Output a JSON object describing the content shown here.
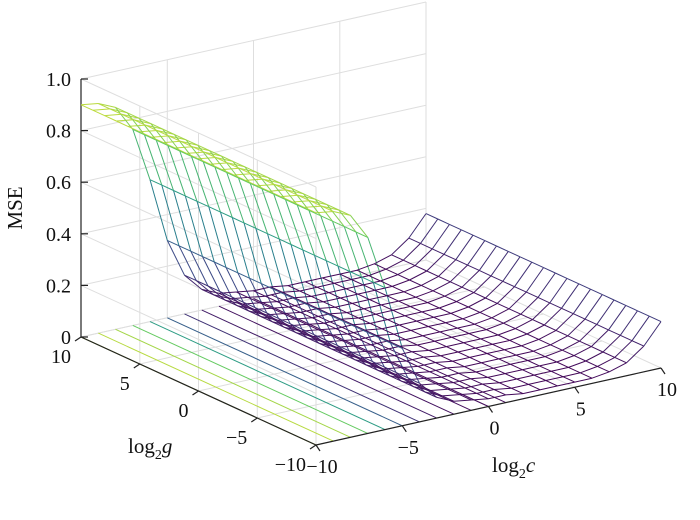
{
  "chart_data": {
    "type": "surface3d",
    "title": "",
    "zlabel": "MSE",
    "xlabel": {
      "base": "log",
      "sub": "2",
      "var": "c"
    },
    "ylabel": {
      "base": "log",
      "sub": "2",
      "var": "g"
    },
    "xlim": [
      -10,
      10
    ],
    "ylim": [
      -10,
      10
    ],
    "zlim": [
      0,
      1
    ],
    "x_ticks": [
      -10,
      -5,
      0,
      5,
      10
    ],
    "y_ticks": [
      -10,
      -5,
      0,
      5,
      10
    ],
    "z_ticks": [
      "0",
      "0.2",
      "0.4",
      "0.6",
      "0.8",
      "1.0"
    ],
    "x": [
      -10,
      -9,
      -8,
      -7,
      -6,
      -5,
      -4,
      -3,
      -2,
      -1,
      0,
      1,
      2,
      3,
      4,
      5,
      6,
      7,
      8,
      9,
      10
    ],
    "y": [
      -10,
      -9,
      -8,
      -7,
      -6,
      -5,
      -4,
      -3,
      -2,
      -1,
      0,
      1,
      2,
      3,
      4,
      5,
      6,
      7,
      8,
      9,
      10
    ],
    "colormap": [
      "#440154",
      "#3b528b",
      "#21918c",
      "#5ec962",
      "#fde725"
    ],
    "grid": true,
    "contour_on_floor": true,
    "z": [
      [
        0.9,
        0.89,
        0.86,
        0.76,
        0.55,
        0.3,
        0.15,
        0.08,
        0.05,
        0.04,
        0.03,
        0.03,
        0.02,
        0.02,
        0.02,
        0.02,
        0.02,
        0.03,
        0.05,
        0.1,
        0.18
      ],
      [
        0.9,
        0.89,
        0.86,
        0.76,
        0.55,
        0.3,
        0.15,
        0.08,
        0.05,
        0.04,
        0.03,
        0.03,
        0.02,
        0.02,
        0.02,
        0.02,
        0.02,
        0.03,
        0.05,
        0.1,
        0.18
      ],
      [
        0.9,
        0.89,
        0.86,
        0.76,
        0.55,
        0.3,
        0.15,
        0.08,
        0.05,
        0.04,
        0.03,
        0.03,
        0.02,
        0.02,
        0.02,
        0.02,
        0.02,
        0.03,
        0.05,
        0.1,
        0.18
      ],
      [
        0.9,
        0.89,
        0.86,
        0.76,
        0.55,
        0.3,
        0.15,
        0.08,
        0.05,
        0.04,
        0.03,
        0.03,
        0.02,
        0.02,
        0.02,
        0.02,
        0.02,
        0.03,
        0.05,
        0.1,
        0.18
      ],
      [
        0.9,
        0.89,
        0.86,
        0.76,
        0.55,
        0.3,
        0.15,
        0.08,
        0.05,
        0.04,
        0.03,
        0.03,
        0.02,
        0.02,
        0.02,
        0.02,
        0.02,
        0.03,
        0.05,
        0.1,
        0.18
      ],
      [
        0.9,
        0.89,
        0.86,
        0.76,
        0.55,
        0.3,
        0.15,
        0.08,
        0.05,
        0.04,
        0.03,
        0.03,
        0.02,
        0.02,
        0.02,
        0.02,
        0.02,
        0.03,
        0.05,
        0.1,
        0.18
      ],
      [
        0.9,
        0.89,
        0.86,
        0.76,
        0.55,
        0.3,
        0.15,
        0.08,
        0.05,
        0.04,
        0.03,
        0.03,
        0.02,
        0.02,
        0.02,
        0.02,
        0.02,
        0.03,
        0.05,
        0.1,
        0.18
      ],
      [
        0.9,
        0.89,
        0.86,
        0.76,
        0.55,
        0.3,
        0.15,
        0.08,
        0.05,
        0.04,
        0.03,
        0.03,
        0.02,
        0.02,
        0.02,
        0.02,
        0.02,
        0.03,
        0.05,
        0.1,
        0.18
      ],
      [
        0.9,
        0.89,
        0.86,
        0.76,
        0.55,
        0.3,
        0.15,
        0.08,
        0.05,
        0.04,
        0.03,
        0.03,
        0.02,
        0.02,
        0.02,
        0.02,
        0.02,
        0.03,
        0.05,
        0.1,
        0.18
      ],
      [
        0.9,
        0.89,
        0.86,
        0.76,
        0.55,
        0.3,
        0.15,
        0.08,
        0.05,
        0.04,
        0.03,
        0.03,
        0.02,
        0.02,
        0.02,
        0.02,
        0.02,
        0.03,
        0.05,
        0.1,
        0.18
      ],
      [
        0.9,
        0.89,
        0.86,
        0.76,
        0.55,
        0.3,
        0.15,
        0.08,
        0.05,
        0.04,
        0.03,
        0.03,
        0.02,
        0.02,
        0.02,
        0.02,
        0.02,
        0.03,
        0.05,
        0.1,
        0.18
      ],
      [
        0.9,
        0.89,
        0.86,
        0.76,
        0.55,
        0.3,
        0.15,
        0.08,
        0.05,
        0.04,
        0.03,
        0.03,
        0.02,
        0.02,
        0.02,
        0.02,
        0.02,
        0.03,
        0.05,
        0.1,
        0.18
      ],
      [
        0.9,
        0.89,
        0.86,
        0.76,
        0.55,
        0.3,
        0.15,
        0.08,
        0.05,
        0.04,
        0.03,
        0.03,
        0.02,
        0.02,
        0.02,
        0.02,
        0.02,
        0.03,
        0.05,
        0.1,
        0.18
      ],
      [
        0.9,
        0.89,
        0.86,
        0.76,
        0.55,
        0.3,
        0.15,
        0.08,
        0.05,
        0.04,
        0.03,
        0.03,
        0.02,
        0.02,
        0.02,
        0.02,
        0.02,
        0.03,
        0.05,
        0.1,
        0.18
      ],
      [
        0.9,
        0.89,
        0.86,
        0.76,
        0.55,
        0.3,
        0.15,
        0.08,
        0.05,
        0.04,
        0.03,
        0.03,
        0.02,
        0.02,
        0.02,
        0.02,
        0.02,
        0.03,
        0.05,
        0.1,
        0.18
      ],
      [
        0.9,
        0.89,
        0.86,
        0.76,
        0.55,
        0.3,
        0.15,
        0.08,
        0.05,
        0.04,
        0.03,
        0.03,
        0.02,
        0.02,
        0.02,
        0.02,
        0.02,
        0.03,
        0.05,
        0.1,
        0.18
      ],
      [
        0.9,
        0.89,
        0.86,
        0.76,
        0.55,
        0.3,
        0.15,
        0.08,
        0.05,
        0.04,
        0.03,
        0.03,
        0.02,
        0.02,
        0.02,
        0.02,
        0.02,
        0.03,
        0.05,
        0.1,
        0.18
      ],
      [
        0.9,
        0.89,
        0.86,
        0.76,
        0.55,
        0.3,
        0.15,
        0.08,
        0.05,
        0.04,
        0.03,
        0.03,
        0.02,
        0.02,
        0.02,
        0.02,
        0.02,
        0.03,
        0.05,
        0.1,
        0.18
      ],
      [
        0.9,
        0.89,
        0.86,
        0.76,
        0.55,
        0.3,
        0.15,
        0.08,
        0.05,
        0.04,
        0.03,
        0.03,
        0.02,
        0.02,
        0.02,
        0.02,
        0.02,
        0.03,
        0.05,
        0.1,
        0.18
      ],
      [
        0.9,
        0.89,
        0.86,
        0.76,
        0.55,
        0.3,
        0.15,
        0.08,
        0.05,
        0.04,
        0.03,
        0.03,
        0.02,
        0.02,
        0.02,
        0.02,
        0.02,
        0.03,
        0.05,
        0.1,
        0.18
      ],
      [
        0.9,
        0.89,
        0.86,
        0.76,
        0.55,
        0.3,
        0.15,
        0.08,
        0.05,
        0.04,
        0.03,
        0.03,
        0.02,
        0.02,
        0.02,
        0.02,
        0.02,
        0.03,
        0.05,
        0.1,
        0.18
      ]
    ]
  }
}
